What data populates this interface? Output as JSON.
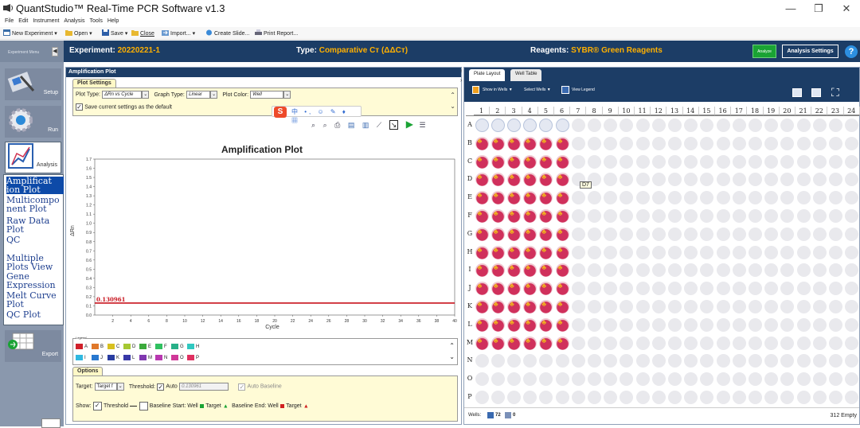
{
  "window": {
    "title": "QuantStudio™ Real-Time PCR Software v1.3",
    "min": "—",
    "max": "❐",
    "close": "✕"
  },
  "menu": [
    "File",
    "Edit",
    "Instrument",
    "Analysis",
    "Tools",
    "Help"
  ],
  "toolbar": {
    "new_experiment": "New Experiment ▾",
    "open": "Open ▾",
    "save": "Save ▾",
    "close": "Close",
    "import": "Import... ▾",
    "create_slide": "Create Slide...",
    "print_report": "Print Report..."
  },
  "header": {
    "experiment_menu": "Experiment Menu",
    "experiment_label": "Experiment:",
    "experiment_value": "20220221-1",
    "type_label": "Type:",
    "type_value": "Comparative Cт (ΔΔCт)",
    "reagents_label": "Reagents:",
    "reagents_value": "SYBR® Green Reagents",
    "analyze": "Analyze",
    "analysis_settings": "Analysis Settings",
    "help": "?"
  },
  "sidebar": {
    "setup": "Setup",
    "run": "Run",
    "analysis": "Analysis",
    "export": "Export",
    "analysis_items": [
      "Amplificat ion Plot",
      "Multicompo nent Plot",
      "Raw Data Plot",
      "QC Summary",
      "Multiple Plots View",
      "Gene Expression",
      "Melt Curve Plot",
      "QC Plot"
    ]
  },
  "amp": {
    "panel_title": "Amplification Plot",
    "plot_settings_tab": "Plot Settings",
    "plot_type_label": "Plot Type:",
    "plot_type_value": "ΔRn vs Cycle",
    "graph_type_label": "Graph Type:",
    "graph_type_value": "Linear",
    "plot_color_label": "Plot Color:",
    "plot_color_value": "Well",
    "save_default": "Save current settings as the default",
    "legend_title": "Legend",
    "legend": [
      {
        "label": "A",
        "color": "#d0202a"
      },
      {
        "label": "B",
        "color": "#e0782a"
      },
      {
        "label": "C",
        "color": "#d8c020"
      },
      {
        "label": "D",
        "color": "#a6c832"
      },
      {
        "label": "E",
        "color": "#3caa3c"
      },
      {
        "label": "F",
        "color": "#30c060"
      },
      {
        "label": "G",
        "color": "#28b088"
      },
      {
        "label": "H",
        "color": "#30c8c0"
      },
      {
        "label": "I",
        "color": "#30b8e0"
      },
      {
        "label": "J",
        "color": "#2878d0"
      },
      {
        "label": "K",
        "color": "#283ca0"
      },
      {
        "label": "L",
        "color": "#3838a8"
      },
      {
        "label": "M",
        "color": "#8038b0"
      },
      {
        "label": "N",
        "color": "#b838b0"
      },
      {
        "label": "O",
        "color": "#d03898"
      },
      {
        "label": "P",
        "color": "#e03060"
      }
    ],
    "options_tab": "Options",
    "target_label": "Target:",
    "target_value": "Target f",
    "threshold_label": "Threshold:",
    "auto_label": "Auto",
    "threshold_value": "0.130961",
    "auto_baseline": "Auto Baseline",
    "show_label": "Show:",
    "show_threshold": "Threshold",
    "baseline_start": "Baseline Start: Well",
    "target_word": "Target",
    "baseline_end": "Baseline End: Well",
    "target_word2": "Target"
  },
  "chart_data": {
    "type": "line",
    "title": "Amplification Plot",
    "xlabel": "Cycle",
    "ylabel": "ΔRn",
    "xlim": [
      0,
      40
    ],
    "ylim": [
      0,
      1.7
    ],
    "x_ticks": [
      2,
      4,
      6,
      8,
      10,
      12,
      14,
      16,
      18,
      20,
      22,
      24,
      26,
      28,
      30,
      32,
      34,
      36,
      38,
      40
    ],
    "y_ticks": [
      "0.0",
      "0.1",
      "0.2",
      "0.3",
      "0.4",
      "0.5",
      "0.6",
      "0.7",
      "0.8",
      "0.9",
      "1.0",
      "1.1",
      "1.2",
      "1.3",
      "1.4",
      "1.5",
      "1.6",
      "1.7"
    ],
    "threshold": 0.130961,
    "threshold_label": "0.130961",
    "threshold_color": "#c8141e",
    "grid": false
  },
  "plate": {
    "tab_layout": "Plate Layout",
    "tab_table": "Well Table",
    "show_in_wells": "Show in Wells ▼",
    "select_wells": "Select Wells ▼",
    "view_legend": "View Legend",
    "columns": [
      "1",
      "2",
      "3",
      "4",
      "5",
      "6",
      "7",
      "8",
      "9",
      "10",
      "11",
      "12",
      "13",
      "14",
      "15",
      "16",
      "17",
      "18",
      "19",
      "20",
      "21",
      "22",
      "23",
      "24"
    ],
    "rows": [
      "A",
      "B",
      "C",
      "D",
      "E",
      "F",
      "G",
      "H",
      "I",
      "J",
      "K",
      "L",
      "M",
      "N",
      "O",
      "P"
    ],
    "tooltip": "D7",
    "wells_label": "Wells:",
    "wells_selected": "72",
    "wells_other": "0",
    "empty_count": "312 Empty"
  }
}
